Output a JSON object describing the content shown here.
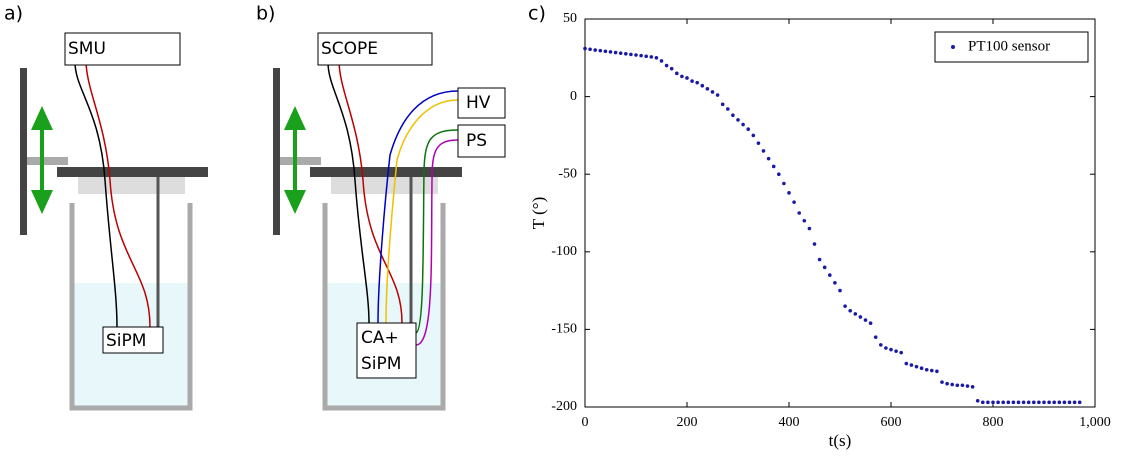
{
  "panels": {
    "a": {
      "label": "a)",
      "source": "SMU",
      "sensor": "SiPM"
    },
    "b": {
      "label": "b)",
      "source": "SCOPE",
      "hv": "HV",
      "ps": "PS",
      "sensor_line1": "CA+",
      "sensor_line2": "SiPM"
    },
    "c": {
      "label": "c)"
    }
  },
  "chart_data": {
    "type": "scatter",
    "xlabel": "t(s)",
    "ylabel": "T (°)",
    "xlim": [
      0,
      1000
    ],
    "ylim": [
      -200,
      50
    ],
    "xticks": [
      0,
      200,
      400,
      600,
      800,
      {
        "value": 1000,
        "label": "1,000"
      }
    ],
    "yticks": [
      -200,
      -150,
      -100,
      -50,
      0,
      50
    ],
    "legend": "upper right",
    "x": [
      0,
      10,
      20,
      30,
      40,
      50,
      60,
      70,
      80,
      90,
      100,
      110,
      120,
      130,
      140,
      150,
      160,
      170,
      180,
      190,
      200,
      210,
      220,
      230,
      240,
      250,
      260,
      270,
      280,
      290,
      300,
      310,
      320,
      330,
      340,
      350,
      360,
      370,
      380,
      390,
      400,
      410,
      420,
      430,
      440,
      450,
      460,
      470,
      480,
      490,
      500,
      510,
      520,
      530,
      540,
      550,
      560,
      570,
      580,
      590,
      600,
      610,
      620,
      630,
      640,
      650,
      660,
      670,
      680,
      690,
      700,
      710,
      720,
      730,
      740,
      750,
      760,
      770,
      780,
      790,
      800,
      810,
      820,
      830,
      840,
      850,
      860,
      870,
      880,
      890,
      900,
      910,
      920,
      930,
      940,
      950,
      960,
      970
    ],
    "series": [
      {
        "name": "PT100 sensor",
        "color": "#1a1aa6",
        "values": [
          31,
          30.5,
          30,
          29.6,
          29.2,
          28.8,
          28.4,
          28,
          27.6,
          27.2,
          26.8,
          26.4,
          26,
          25.6,
          25,
          23,
          20,
          18,
          15,
          13,
          12,
          10,
          9,
          7,
          5,
          3,
          1,
          -5,
          -8,
          -12,
          -15,
          -18,
          -21,
          -25,
          -30,
          -35,
          -40,
          -45,
          -50,
          -56,
          -62,
          -68,
          -75,
          -80,
          -85,
          -95,
          -105,
          -110,
          -115,
          -120,
          -125,
          -135,
          -138,
          -140,
          -142,
          -144,
          -146,
          -155,
          -160,
          -162,
          -163,
          -164,
          -165,
          -172,
          -173,
          -174,
          -175,
          -176,
          -176.5,
          -177,
          -184,
          -185,
          -185.5,
          -186,
          -186,
          -186.5,
          -187,
          -196,
          -197,
          -197,
          -197,
          -197,
          -197,
          -197,
          -197,
          -197,
          -197,
          -197,
          -197,
          -197,
          -197,
          -197,
          -197,
          -197,
          -197,
          -197,
          -197,
          -197
        ]
      }
    ]
  }
}
